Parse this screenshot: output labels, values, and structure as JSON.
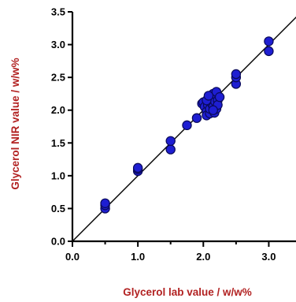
{
  "chart_data": {
    "type": "scatter",
    "xlabel": "Glycerol lab value / w/w%",
    "ylabel": "Glycerol NIR value / w/w%",
    "xlim": [
      0.0,
      3.5
    ],
    "ylim": [
      0.0,
      3.5
    ],
    "x_ticks": [
      "0.0",
      "1.0",
      "2.0",
      "3.0"
    ],
    "y_ticks": [
      "0.0",
      "0.5",
      "1.0",
      "1.5",
      "2.0",
      "2.5",
      "3.0",
      "3.5"
    ],
    "grid": false,
    "reference_line": "y = x",
    "colors": {
      "marker_fill": "#1e1ed2",
      "marker_edge": "#0a0a5a",
      "axis_title": "#b22222",
      "axis": "#000000"
    },
    "series": [
      {
        "points": [
          [
            0.5,
            0.5
          ],
          [
            0.5,
            0.55
          ],
          [
            0.5,
            0.58
          ],
          [
            1.0,
            1.07
          ],
          [
            1.0,
            1.1
          ],
          [
            1.0,
            1.12
          ],
          [
            1.5,
            1.4
          ],
          [
            1.5,
            1.53
          ],
          [
            1.75,
            1.77
          ],
          [
            1.9,
            1.88
          ],
          [
            1.98,
            2.1
          ],
          [
            2.0,
            2.12
          ],
          [
            2.02,
            2.05
          ],
          [
            2.05,
            1.98
          ],
          [
            2.05,
            1.92
          ],
          [
            2.07,
            2.08
          ],
          [
            2.1,
            1.95
          ],
          [
            2.1,
            2.02
          ],
          [
            2.12,
            2.18
          ],
          [
            2.13,
            2.1
          ],
          [
            2.15,
            2.25
          ],
          [
            2.15,
            2.05
          ],
          [
            2.17,
            1.96
          ],
          [
            2.18,
            2.13
          ],
          [
            2.2,
            2.23
          ],
          [
            2.2,
            2.28
          ],
          [
            2.2,
            2.02
          ],
          [
            2.22,
            2.15
          ],
          [
            2.22,
            2.08
          ],
          [
            2.25,
            2.2
          ],
          [
            2.05,
            2.15
          ],
          [
            2.08,
            2.22
          ],
          [
            2.15,
            2.0
          ],
          [
            2.5,
            2.4
          ],
          [
            2.5,
            2.5
          ],
          [
            2.5,
            2.55
          ],
          [
            3.0,
            2.9
          ],
          [
            3.0,
            3.05
          ]
        ]
      }
    ]
  }
}
